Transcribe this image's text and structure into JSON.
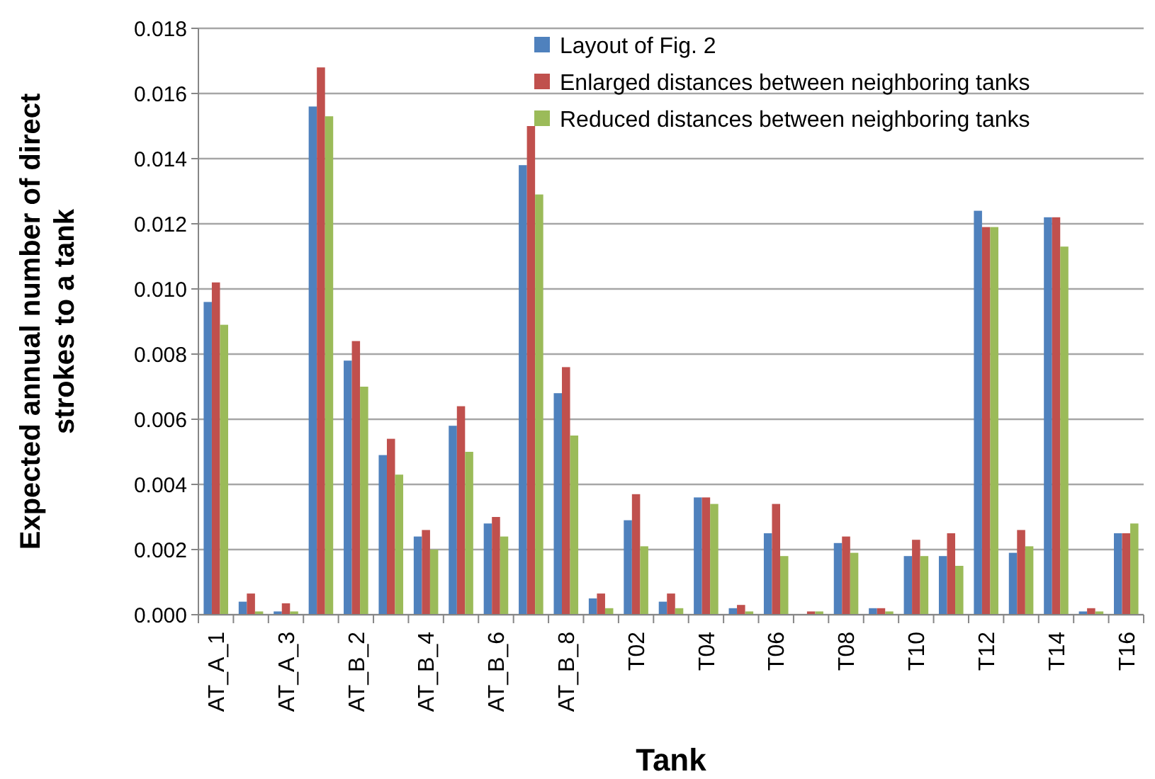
{
  "chart_data": {
    "type": "bar",
    "xlabel": "Tank",
    "ylabel": "Expected annual number of direct\nstrokes to a tank",
    "categories": [
      "AT_A_1",
      null,
      "AT_A_3",
      null,
      "AT_B_2",
      null,
      "AT_B_4",
      null,
      "AT_B_6",
      null,
      "AT_B_8",
      null,
      "T02",
      null,
      "T04",
      null,
      "T06",
      null,
      "T08",
      null,
      "T10",
      null,
      "T12",
      null,
      "T14",
      null,
      "T16"
    ],
    "series": [
      {
        "name": "Layout of Fig. 2",
        "color": "#4f81bd",
        "values": [
          0.0096,
          0.0004,
          0.0001,
          0.0156,
          0.0078,
          0.0049,
          0.0024,
          0.0058,
          0.0028,
          0.0138,
          0.0068,
          0.0005,
          0.0029,
          0.0004,
          0.0036,
          0.0002,
          0.0025,
          0,
          0.0022,
          0.0002,
          0.0018,
          0.0018,
          0.0124,
          0.0019,
          0.0122,
          0.0001,
          0.0025
        ]
      },
      {
        "name": "Enlarged distances between neighboring tanks",
        "color": "#c0504d",
        "values": [
          0.0102,
          0.00065,
          0.00035,
          0.0168,
          0.0084,
          0.0054,
          0.0026,
          0.0064,
          0.003,
          0.015,
          0.0076,
          0.00065,
          0.0037,
          0.00065,
          0.0036,
          0.0003,
          0.0034,
          0.0001,
          0.0024,
          0.0002,
          0.0023,
          0.0025,
          0.0119,
          0.0026,
          0.0122,
          0.0002,
          0.0025
        ]
      },
      {
        "name": "Reduced distances between neighboring tanks",
        "color": "#9bbb59",
        "values": [
          0.0089,
          0.0001,
          0.0001,
          0.0153,
          0.007,
          0.0043,
          0.002,
          0.005,
          0.0024,
          0.0129,
          0.0055,
          0.0002,
          0.0021,
          0.0002,
          0.0034,
          0.0001,
          0.0018,
          0.0001,
          0.0019,
          0.0001,
          0.0018,
          0.0015,
          0.0119,
          0.0021,
          0.0113,
          0.0001,
          0.0028
        ]
      }
    ],
    "ylim": [
      0,
      0.018
    ],
    "yticks": [
      {
        "value": 0,
        "label": "0.000"
      },
      {
        "value": 0.002,
        "label": "0.002"
      },
      {
        "value": 0.004,
        "label": "0.004"
      },
      {
        "value": 0.006,
        "label": "0.006"
      },
      {
        "value": 0.008,
        "label": "0.008"
      },
      {
        "value": 0.01,
        "label": "0.010"
      },
      {
        "value": 0.012,
        "label": "0.012"
      },
      {
        "value": 0.014,
        "label": "0.014"
      },
      {
        "value": 0.016,
        "label": "0.016"
      },
      {
        "value": 0.018,
        "label": "0.018"
      }
    ],
    "grid": "y",
    "legend": "top right"
  }
}
